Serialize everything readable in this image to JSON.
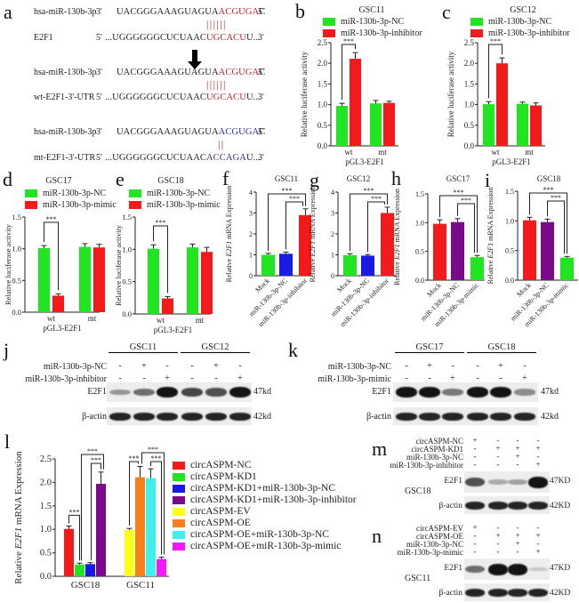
{
  "panels": {
    "a": {
      "letter": "a",
      "rows": [
        {
          "label": "hsa-miR-130b-3p",
          "end5": "3'",
          "seq_black": "UACGGGAAAGUAGUA",
          "seq_color": "ACGUGA",
          "seq_tail": "C",
          "end3": "5'",
          "color": "red"
        },
        {
          "label": "E2F1",
          "end5": "5'",
          "seq_black": "...UGGGGGGCUCUAAC",
          "seq_color": "UGCACU",
          "seq_tail": "U...",
          "end3": "3'",
          "color": "red"
        },
        {
          "label": "hsa-miR-130b-3p",
          "end5": "3'",
          "seq_black": "UACGGGAAAGUAGUA",
          "seq_color": "ACGUGA",
          "seq_tail": "C",
          "end3": "5'",
          "color": "red"
        },
        {
          "label": "wt-E2F1-3'-UTR",
          "end5": "5'",
          "seq_black": "...UGGGGGGCUCUAAC",
          "seq_color": "UGCACU",
          "seq_tail": "U...",
          "end3": "3'",
          "color": "red"
        },
        {
          "label": "hsa-miR-130b-3p",
          "end5": "3'",
          "seq_black": "UACGGGAAAGUAGUA",
          "seq_color": "ACGUGA",
          "seq_tail": "C",
          "end3": "5'",
          "color": "blue"
        },
        {
          "label": "mt-E2F1-3'-UTR",
          "end5": "5'",
          "seq_black": "...UGGGGGGCUCUAAC",
          "seq_color": "ACCAGA",
          "seq_tail": "U...",
          "end3": "3'",
          "color": "blue"
        }
      ],
      "pairs_full": "||||||",
      "pairs_partial": "||"
    },
    "b": {
      "letter": "b"
    },
    "c": {
      "letter": "c"
    },
    "d": {
      "letter": "d"
    },
    "e": {
      "letter": "e"
    },
    "f": {
      "letter": "f"
    },
    "g": {
      "letter": "g"
    },
    "h": {
      "letter": "h"
    },
    "i": {
      "letter": "i"
    },
    "j": {
      "letter": "j"
    },
    "k": {
      "letter": "k"
    },
    "l": {
      "letter": "l"
    },
    "m": {
      "letter": "m"
    },
    "n": {
      "letter": "n"
    }
  },
  "colors": {
    "green": "#22e522",
    "red": "#f21a1a",
    "blue": "#1a1ae6",
    "purple": "#7a0a8a",
    "yellow": "#ffff1a",
    "orange": "#f7801a",
    "cyan": "#3cf0f0",
    "magenta": "#f51af5"
  },
  "legends": {
    "inhibitor": [
      "miR-130b-3p-NC",
      "miR-130b-3p-inhibitor"
    ],
    "mimic": [
      "miR-130b-3p-NC",
      "miR-130b-3p-mimic"
    ],
    "circ": [
      "circASPM-NC",
      "circASPM-KD1",
      "circASPM-KD1+miR-130b-3p-NC",
      "circASPM-KD1+miR-130b-3p-inhibitor",
      "circASPM-EV",
      "circASPM-OE",
      "circASPM-OE+miR-130b-3p-NC",
      "circASPM-OE+miR-130b-3p-mimic"
    ]
  },
  "axis": {
    "luc": "Relative luciferase activity",
    "mrna_pre": "Relative ",
    "mrna_gene": "E2F1",
    "mrna_post": " mRNA Expression",
    "xgroup": "pGL3-E2F1",
    "sig": "***"
  },
  "chart_data": [
    {
      "panel": "b",
      "type": "bar",
      "title": "GSC11",
      "categories": [
        "wt",
        "mt"
      ],
      "xlabel": "pGL3-E2F1",
      "ylabel": "Relative luciferase activity",
      "ylim": [
        0,
        2.5
      ],
      "yticks": [
        "0.0",
        "0.5",
        "1.0",
        "1.5",
        "2.0",
        "2.5"
      ],
      "series": [
        {
          "name": "miR-130b-3p-NC",
          "values": [
            0.97,
            1.03
          ],
          "errors": [
            0.06,
            0.07
          ]
        },
        {
          "name": "miR-130b-3p-inhibitor",
          "values": [
            2.11,
            1.04
          ],
          "errors": [
            0.15,
            0.04
          ]
        }
      ],
      "annotations": [
        "*** wt"
      ]
    },
    {
      "panel": "c",
      "type": "bar",
      "title": "GSC12",
      "categories": [
        "wt",
        "mt"
      ],
      "xlabel": "pGL3-E2F1",
      "ylabel": "Relative luciferase activity",
      "ylim": [
        0,
        2.5
      ],
      "yticks": [
        "0.0",
        "0.5",
        "1.0",
        "1.5",
        "2.0",
        "2.5"
      ],
      "series": [
        {
          "name": "miR-130b-3p-NC",
          "values": [
            1.01,
            1.02
          ],
          "errors": [
            0.06,
            0.04
          ]
        },
        {
          "name": "miR-130b-3p-inhibitor",
          "values": [
            2.0,
            0.98
          ],
          "errors": [
            0.13,
            0.06
          ]
        }
      ],
      "annotations": [
        "*** wt"
      ]
    },
    {
      "panel": "d",
      "type": "bar",
      "title": "GSC17",
      "categories": [
        "wt",
        "mt"
      ],
      "xlabel": "pGL3-E2F1",
      "ylabel": "Relative luciferase activity",
      "ylim": [
        0,
        1.5
      ],
      "yticks": [
        "0.0",
        "0.5",
        "1.0",
        "1.5"
      ],
      "series": [
        {
          "name": "miR-130b-3p-NC",
          "values": [
            1.01,
            1.03
          ],
          "errors": [
            0.04,
            0.05
          ]
        },
        {
          "name": "miR-130b-3p-mimic",
          "values": [
            0.26,
            1.02
          ],
          "errors": [
            0.03,
            0.05
          ]
        }
      ],
      "annotations": [
        "*** wt"
      ]
    },
    {
      "panel": "e",
      "type": "bar",
      "title": "GSC18",
      "categories": [
        "wt",
        "mt"
      ],
      "xlabel": "pGL3-E2F1",
      "ylabel": "Relative luciferase activity",
      "ylim": [
        0,
        1.5
      ],
      "yticks": [
        "0.0",
        "0.5",
        "1.0",
        "1.5"
      ],
      "series": [
        {
          "name": "miR-130b-3p-NC",
          "values": [
            1.01,
            1.03
          ],
          "errors": [
            0.06,
            0.05
          ]
        },
        {
          "name": "miR-130b-3p-mimic",
          "values": [
            0.24,
            0.96
          ],
          "errors": [
            0.03,
            0.07
          ]
        }
      ],
      "annotations": [
        "*** wt"
      ]
    },
    {
      "panel": "f",
      "type": "bar",
      "title": "GSC11",
      "categories": [
        "Mock",
        "miR-130b-3p-NC",
        "miR-130b-3p-inhibitor"
      ],
      "ylabel": "Relative E2F1 mRNA Expression",
      "ylim": [
        0,
        4
      ],
      "yticks": [
        "0",
        "1",
        "2",
        "3",
        "4"
      ],
      "values": [
        1.0,
        1.05,
        2.9
      ],
      "errors": [
        0.07,
        0.08,
        0.3
      ],
      "bar_colors": [
        "green",
        "blue",
        "red"
      ],
      "annotations": [
        "*** Mock vs inhibitor",
        "*** NC vs inhibitor"
      ]
    },
    {
      "panel": "g",
      "type": "bar",
      "title": "GSC12",
      "categories": [
        "Mock",
        "miR-130b-3p-NC",
        "miR-130b-3p-inhibitor"
      ],
      "ylabel": "Relative E2F1 mRNA Expression",
      "ylim": [
        0,
        4
      ],
      "yticks": [
        "0",
        "1",
        "2",
        "3",
        "4"
      ],
      "values": [
        0.98,
        0.96,
        3.0
      ],
      "errors": [
        0.07,
        0.05,
        0.28
      ],
      "bar_colors": [
        "green",
        "blue",
        "red"
      ],
      "annotations": [
        "*** Mock vs inhibitor",
        "*** NC vs inhibitor"
      ]
    },
    {
      "panel": "h",
      "type": "bar",
      "title": "GSC17",
      "categories": [
        "Mock",
        "miR-130b-3p-NC",
        "miR-130b-3p-mimic"
      ],
      "ylabel": "Relative E2F1 mRNA Expression",
      "ylim": [
        0,
        1.5
      ],
      "yticks": [
        "0.0",
        "0.5",
        "1.0",
        "1.5"
      ],
      "values": [
        0.98,
        1.01,
        0.4
      ],
      "errors": [
        0.07,
        0.06,
        0.03
      ],
      "bar_colors": [
        "red",
        "purple",
        "green"
      ],
      "annotations": [
        "*** Mock vs mimic",
        "*** NC vs mimic"
      ]
    },
    {
      "panel": "i",
      "type": "bar",
      "title": "GSC18",
      "categories": [
        "Mock",
        "miR-130b-3p-NC",
        "miR-130b-3p-mimic"
      ],
      "ylabel": "Relative E2F1 mRNA Expression",
      "ylim": [
        0,
        1.5
      ],
      "yticks": [
        "0.0",
        "0.5",
        "1.0",
        "1.5"
      ],
      "values": [
        1.01,
        0.98,
        0.38
      ],
      "errors": [
        0.05,
        0.05,
        0.02
      ],
      "bar_colors": [
        "red",
        "purple",
        "green"
      ],
      "annotations": [
        "*** Mock vs mimic",
        "*** NC vs mimic"
      ]
    },
    {
      "panel": "l",
      "type": "bar",
      "title": "",
      "categories": [
        "GSC18",
        "GSC11"
      ],
      "ylabel": "Relative E2F1 mRNA Expression",
      "ylim": [
        0,
        2.5
      ],
      "yticks": [
        "0.0",
        "0.5",
        "1.0",
        "1.5",
        "2.0",
        "2.5"
      ],
      "series": [
        {
          "name": "circASPM-NC",
          "group": "GSC18",
          "value": 1.01,
          "error": 0.06,
          "color": "red"
        },
        {
          "name": "circASPM-KD1",
          "group": "GSC18",
          "value": 0.25,
          "error": 0.03,
          "color": "green"
        },
        {
          "name": "circASPM-KD1+miR-130b-3p-NC",
          "group": "GSC18",
          "value": 0.26,
          "error": 0.03,
          "color": "blue"
        },
        {
          "name": "circASPM-KD1+miR-130b-3p-inhibitor",
          "group": "GSC18",
          "value": 1.97,
          "error": 0.25,
          "color": "purple"
        },
        {
          "name": "circASPM-EV",
          "group": "GSC11",
          "value": 0.99,
          "error": 0.03,
          "color": "yellow"
        },
        {
          "name": "circASPM-OE",
          "group": "GSC11",
          "value": 2.11,
          "error": 0.23,
          "color": "orange"
        },
        {
          "name": "circASPM-OE+miR-130b-3p-NC",
          "group": "GSC11",
          "value": 2.09,
          "error": 0.2,
          "color": "cyan"
        },
        {
          "name": "circASPM-OE+miR-130b-3p-mimic",
          "group": "GSC11",
          "value": 0.37,
          "error": 0.04,
          "color": "magenta"
        }
      ],
      "legend_position": "right",
      "annotations": [
        "*** NC vs KD1",
        "*** KD1+NC vs KD1+inhibitor",
        "*** KD1 vs KD1+inhibitor",
        "*** EV vs OE",
        "*** OE+NC vs OE+mimic",
        "*** OE vs OE+mimic"
      ]
    }
  ],
  "blots": {
    "j": {
      "groups": [
        "GSC11",
        "GSC12"
      ],
      "conditions": [
        {
          "label": "miR-130b-3p-NC",
          "marks": [
            "-",
            "+",
            "-",
            "-",
            "+",
            "-"
          ]
        },
        {
          "label": "miR-130b-3p-inhibitor",
          "marks": [
            "-",
            "-",
            "+",
            "-",
            "-",
            "+"
          ]
        }
      ],
      "rows": [
        {
          "label": "E2F1",
          "size": "47kd"
        },
        {
          "label": "β-actin",
          "size": "42kd"
        }
      ]
    },
    "k": {
      "groups": [
        "GSC17",
        "GSC18"
      ],
      "conditions": [
        {
          "label": "miR-130b-3p-NC",
          "marks": [
            "-",
            "+",
            "-",
            "-",
            "+",
            "-"
          ]
        },
        {
          "label": "miR-130b-3p-mimic",
          "marks": [
            "-",
            "-",
            "+",
            "-",
            "-",
            "+"
          ]
        }
      ],
      "rows": [
        {
          "label": "E2F1",
          "size": "47kd"
        },
        {
          "label": "β-actin",
          "size": "42kd"
        }
      ]
    },
    "m": {
      "cell": "GSC18",
      "conditions": [
        {
          "label": "circASPM-NC",
          "marks": [
            "+",
            "-",
            "-",
            "-"
          ]
        },
        {
          "label": "circASPM-KD1",
          "marks": [
            "-",
            "+",
            "+",
            "+"
          ]
        },
        {
          "label": "miR-130b-3p-NC",
          "marks": [
            "-",
            "-",
            "+",
            "-"
          ]
        },
        {
          "label": "miR-130b-3p-inhibitor",
          "marks": [
            "-",
            "-",
            "-",
            "+"
          ]
        }
      ],
      "rows": [
        {
          "label": "E2F1",
          "size": "47KD"
        },
        {
          "label": "β-actin",
          "size": "42KD"
        }
      ]
    },
    "n": {
      "cell": "GSC11",
      "conditions": [
        {
          "label": "circASPM-EV",
          "marks": [
            "+",
            "-",
            "-",
            "-"
          ]
        },
        {
          "label": "circASPM-OE",
          "marks": [
            "-",
            "+",
            "+",
            "+"
          ]
        },
        {
          "label": "miR-130b-3p-NC",
          "marks": [
            "-",
            "-",
            "+",
            "-"
          ]
        },
        {
          "label": "miR-130b-3p-mimic",
          "marks": [
            "-",
            "-",
            "-",
            "+"
          ]
        }
      ],
      "rows": [
        {
          "label": "E2F1",
          "size": "47KD"
        },
        {
          "label": "β-actin",
          "size": "42KD"
        }
      ]
    }
  }
}
